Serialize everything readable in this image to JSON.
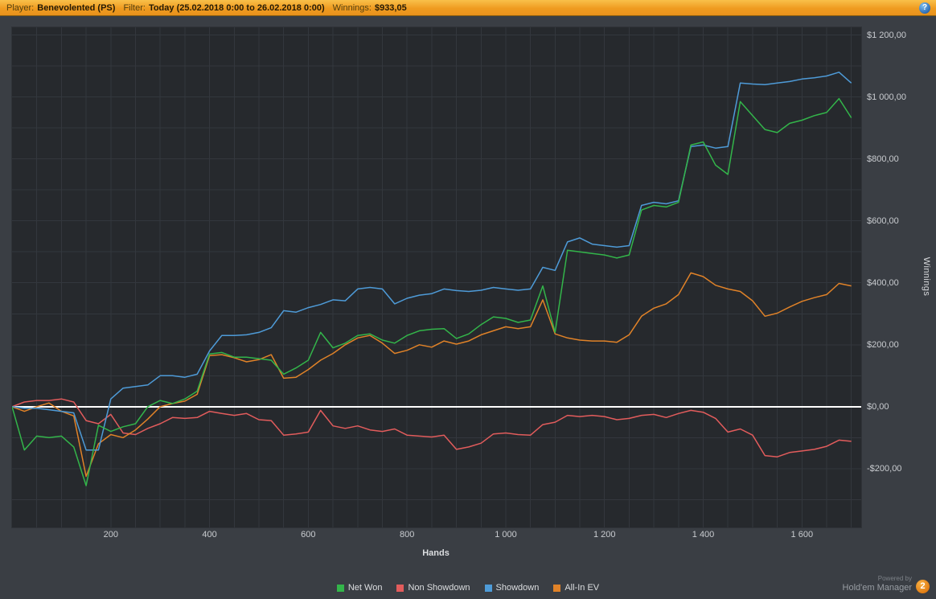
{
  "topbar": {
    "player_label": "Player:",
    "player_value": "Benevolented (PS)",
    "filter_label": "Filter:",
    "filter_value": "Today (25.02.2018 0:00 to 26.02.2018 0:00)",
    "winnings_label": "Winnings:",
    "winnings_value": "$933,05",
    "help_glyph": "?"
  },
  "chart_data": {
    "type": "line",
    "title": "",
    "xlabel": "Hands",
    "ylabel": "Winnings",
    "xlim": [
      0,
      1720
    ],
    "ylim": [
      -390,
      1225
    ],
    "x_start": 0,
    "x_step": 25,
    "grid": {
      "step_x": 50,
      "step_y": 100
    },
    "zero_line": {
      "value": 0,
      "color": "#ffffff"
    },
    "x_ticks": [
      {
        "v": 200,
        "label": "200"
      },
      {
        "v": 400,
        "label": "400"
      },
      {
        "v": 600,
        "label": "600"
      },
      {
        "v": 800,
        "label": "800"
      },
      {
        "v": 1000,
        "label": "1 000"
      },
      {
        "v": 1200,
        "label": "1 200"
      },
      {
        "v": 1400,
        "label": "1 400"
      },
      {
        "v": 1600,
        "label": "1 600"
      }
    ],
    "y_ticks": [
      {
        "v": 1200,
        "label": "$1 200,00"
      },
      {
        "v": 1000,
        "label": "$1 000,00"
      },
      {
        "v": 800,
        "label": "$800,00"
      },
      {
        "v": 600,
        "label": "$600,00"
      },
      {
        "v": 400,
        "label": "$400,00"
      },
      {
        "v": 200,
        "label": "$200,00"
      },
      {
        "v": 0,
        "label": "$0,00"
      },
      {
        "v": -200,
        "label": "-$200,00"
      }
    ],
    "series": [
      {
        "name": "Non Showdown",
        "color": "#e25c5c",
        "values": [
          0,
          15,
          20,
          20,
          25,
          15,
          -45,
          -55,
          -25,
          -85,
          -90,
          -70,
          -55,
          -35,
          -38,
          -35,
          -15,
          -22,
          -28,
          -22,
          -42,
          -45,
          -92,
          -88,
          -82,
          -12,
          -62,
          -70,
          -62,
          -75,
          -80,
          -72,
          -92,
          -95,
          -98,
          -92,
          -138,
          -130,
          -118,
          -88,
          -85,
          -90,
          -92,
          -58,
          -50,
          -28,
          -32,
          -28,
          -32,
          -42,
          -38,
          -28,
          -25,
          -35,
          -22,
          -12,
          -18,
          -38,
          -82,
          -72,
          -92,
          -158,
          -162,
          -148,
          -143,
          -138,
          -128,
          -108,
          -112
        ]
      },
      {
        "name": "All-In EV",
        "color": "#e08228",
        "values": [
          0,
          -15,
          0,
          12,
          -15,
          -30,
          -225,
          -120,
          -90,
          -100,
          -75,
          -40,
          0,
          10,
          18,
          40,
          165,
          168,
          158,
          145,
          152,
          168,
          92,
          95,
          120,
          150,
          172,
          200,
          222,
          230,
          205,
          172,
          182,
          200,
          192,
          212,
          202,
          212,
          232,
          245,
          258,
          252,
          258,
          345,
          235,
          222,
          215,
          212,
          212,
          208,
          232,
          292,
          318,
          332,
          362,
          432,
          420,
          392,
          380,
          372,
          342,
          292,
          302,
          322,
          340,
          352,
          362,
          398,
          390
        ]
      },
      {
        "name": "Showdown",
        "color": "#4e9bd8",
        "values": [
          0,
          -5,
          -5,
          -10,
          -15,
          -20,
          -140,
          -140,
          25,
          60,
          65,
          70,
          100,
          100,
          95,
          105,
          180,
          230,
          230,
          232,
          240,
          255,
          310,
          305,
          320,
          330,
          345,
          342,
          380,
          385,
          380,
          332,
          350,
          360,
          365,
          380,
          375,
          372,
          376,
          385,
          380,
          376,
          380,
          450,
          440,
          532,
          545,
          525,
          520,
          515,
          520,
          650,
          660,
          655,
          665,
          840,
          845,
          835,
          840,
          1045,
          1042,
          1040,
          1045,
          1050,
          1058,
          1062,
          1068,
          1080,
          1045
        ]
      },
      {
        "name": "Net Won",
        "color": "#33b54a",
        "values": [
          0,
          -140,
          -95,
          -100,
          -95,
          -130,
          -255,
          -60,
          -80,
          -65,
          -55,
          0,
          20,
          10,
          25,
          50,
          170,
          175,
          160,
          160,
          155,
          150,
          105,
          125,
          150,
          240,
          190,
          205,
          230,
          235,
          215,
          205,
          230,
          245,
          250,
          252,
          220,
          235,
          265,
          290,
          285,
          272,
          280,
          390,
          240,
          505,
          500,
          495,
          490,
          480,
          490,
          635,
          650,
          645,
          660,
          845,
          855,
          780,
          750,
          985,
          940,
          895,
          885,
          915,
          925,
          940,
          950,
          995,
          933
        ]
      }
    ]
  },
  "legend": {
    "items": [
      {
        "label": "Net Won",
        "color": "#33b54a"
      },
      {
        "label": "Non Showdown",
        "color": "#e25c5c"
      },
      {
        "label": "Showdown",
        "color": "#4e9bd8"
      },
      {
        "label": "All-In EV",
        "color": "#e08228"
      }
    ]
  },
  "footer": {
    "powered_by": "Powered by",
    "brand": "Hold'em Manager",
    "badge": "2"
  }
}
